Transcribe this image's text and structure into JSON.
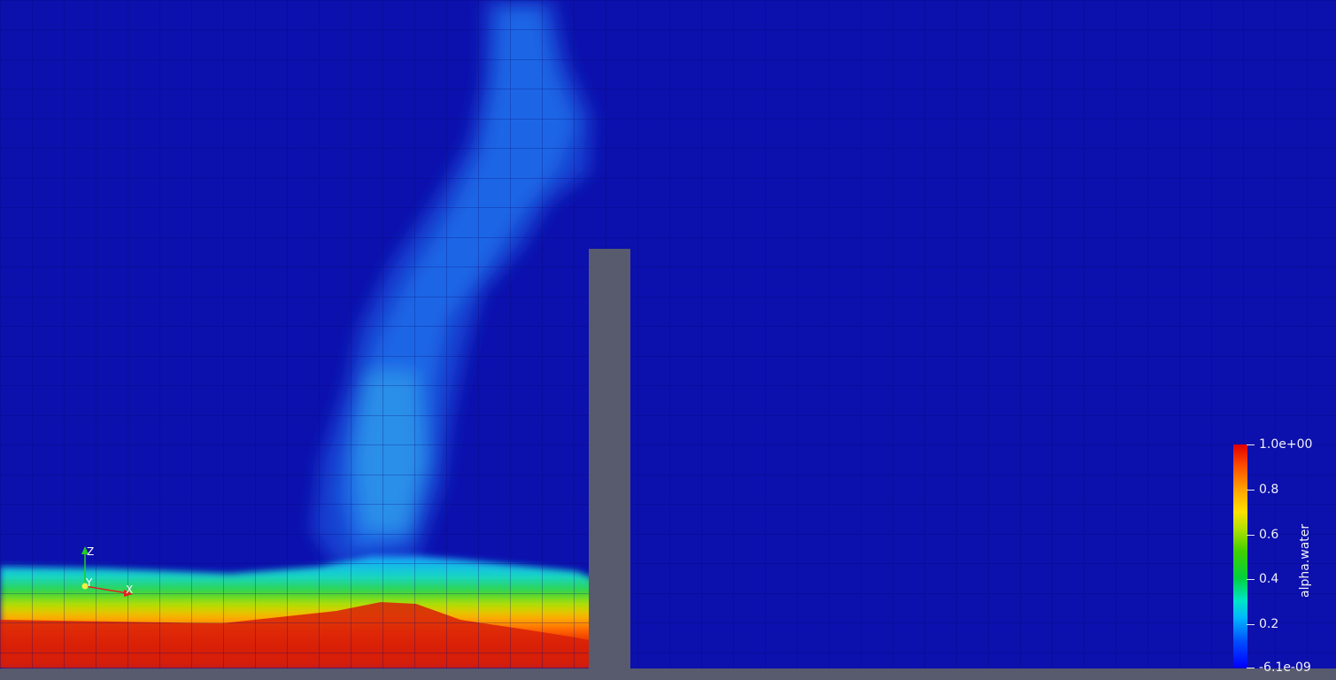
{
  "colormap": {
    "field": "alpha.water",
    "range_labels": {
      "max": "1.0e+00",
      "min": "-6.1e-09"
    },
    "ticks": [
      "0.8",
      "0.6",
      "0.4",
      "0.2"
    ],
    "colors": {
      "background": "#0c10ad",
      "obstacle": "#575b6d",
      "water_high": "#d61a06",
      "water_low": "#0000ff"
    }
  },
  "axes": {
    "x_label": "X",
    "y_label": "Y",
    "z_label": "Z",
    "x_color": "#e02020",
    "y_color": "#f0f040",
    "z_color": "#20d020"
  }
}
